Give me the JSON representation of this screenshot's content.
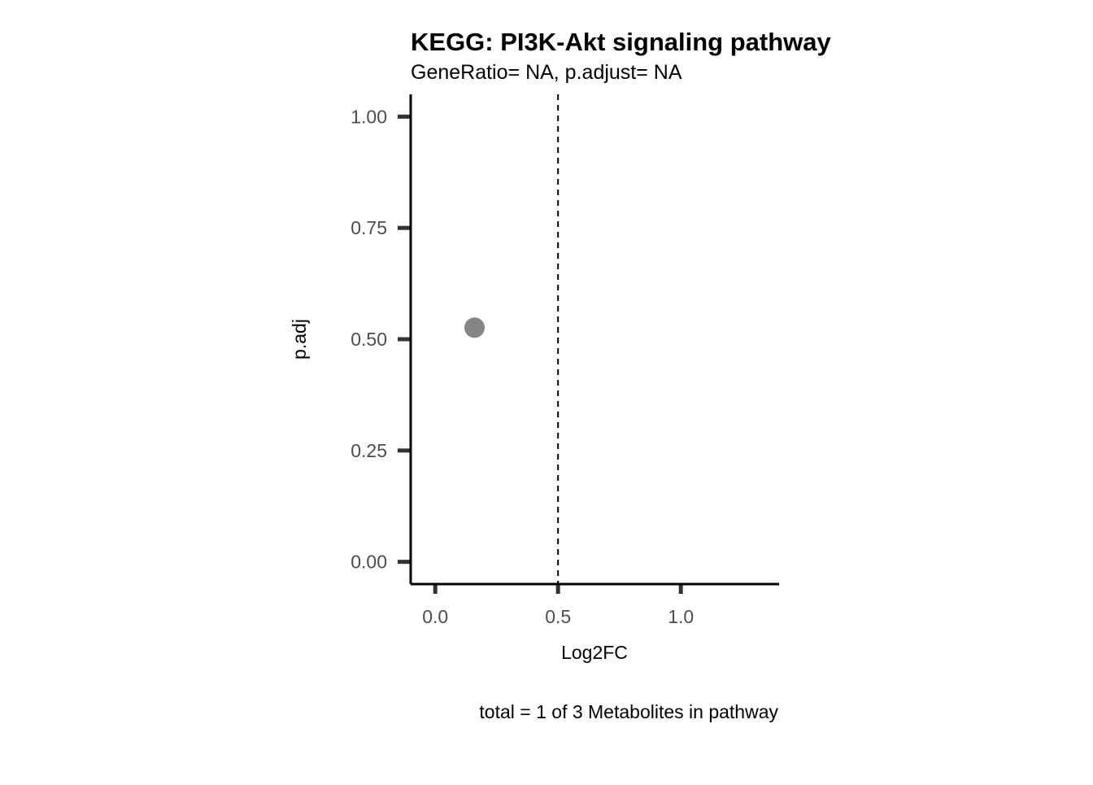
{
  "chart_data": {
    "type": "scatter",
    "title": "KEGG: PI3K-Akt signaling pathway",
    "subtitle": "GeneRatio= NA, p.adjust= NA",
    "xlabel": "Log2FC",
    "ylabel": "p.adj",
    "caption": "total = 1 of 3 Metabolites in pathway",
    "xlim": [
      -0.1,
      1.4
    ],
    "ylim": [
      -0.05,
      1.05
    ],
    "x_ticks": [
      0.0,
      0.5,
      1.0
    ],
    "x_tick_labels": [
      "0.0",
      "0.5",
      "1.0"
    ],
    "y_ticks": [
      0.0,
      0.25,
      0.5,
      0.75,
      1.0
    ],
    "y_tick_labels": [
      "0.00",
      "0.25",
      "0.50",
      "0.75",
      "1.00"
    ],
    "reference_line": {
      "axis": "x",
      "value": 0.5,
      "style": "dashed"
    },
    "grid": false,
    "points": [
      {
        "x": 0.16,
        "y": 0.526,
        "color": "#858585"
      }
    ]
  }
}
